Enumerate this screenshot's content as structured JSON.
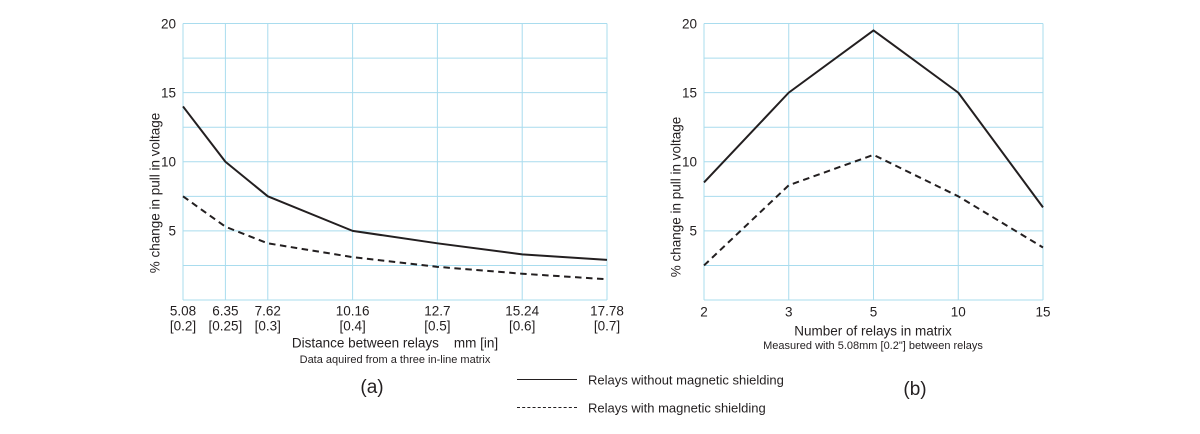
{
  "colors": {
    "grid": "#a9dcee",
    "series_line": "#231f20",
    "text": "#231f20",
    "background": "#ffffff"
  },
  "legend": {
    "position": "below-center",
    "items": [
      {
        "style": "solid",
        "label": "Relays without magnetic shielding"
      },
      {
        "style": "dashed",
        "label": "Relays with magnetic shielding"
      }
    ]
  },
  "chart_data": [
    {
      "id": "a",
      "type": "line",
      "caption": "(a)",
      "title": "",
      "xlabel": "Distance between relays    mm [in]",
      "x_note": "Data aquired from a three in-line matrix",
      "ylabel": "% change in pull in voltage",
      "ylim": [
        0,
        20
      ],
      "y_major_ticks": [
        "20",
        "15",
        "10",
        "5"
      ],
      "y_major_tick_values": [
        20,
        15,
        10,
        5
      ],
      "y_grid_step": 2.5,
      "grid": true,
      "x_axis_kind": "linear-mm",
      "x": [
        5.08,
        6.35,
        7.62,
        10.16,
        12.7,
        15.24,
        17.78
      ],
      "x_tick_labels_mm": [
        "5.08",
        "6.35",
        "7.62",
        "10.16",
        "12.7",
        "15.24",
        "17.78"
      ],
      "x_tick_labels_in": [
        "[0.2]",
        "[0.25]",
        "[0.3]",
        "[0.4]",
        "[0.5]",
        "[0.6]",
        "[0.7]"
      ],
      "series": [
        {
          "name": "Relays without magnetic shielding",
          "style": "solid",
          "values": [
            14,
            10,
            7.5,
            5,
            4.1,
            3.3,
            2.9
          ]
        },
        {
          "name": "Relays with magnetic shielding",
          "style": "dashed",
          "values": [
            7.5,
            5.3,
            4.1,
            3.1,
            2.4,
            1.9,
            1.5
          ]
        }
      ]
    },
    {
      "id": "b",
      "type": "line",
      "caption": "(b)",
      "title": "",
      "xlabel": "Number of relays in matrix",
      "x_note": "Measured with 5.08mm [0.2\"] between relays",
      "ylabel": "% change in pull in voltage",
      "ylim": [
        0,
        20
      ],
      "y_major_ticks": [
        "20",
        "15",
        "10",
        "5"
      ],
      "y_major_tick_values": [
        20,
        15,
        10,
        5
      ],
      "y_grid_step": 2.5,
      "grid": true,
      "x_axis_kind": "categorical",
      "x_tick_labels": [
        "2",
        "3",
        "5",
        "10",
        "15"
      ],
      "series": [
        {
          "name": "Relays without magnetic shielding",
          "style": "solid",
          "values": [
            8.5,
            15,
            19.5,
            15,
            6.7
          ]
        },
        {
          "name": "Relays with magnetic shielding",
          "style": "dashed",
          "values": [
            2.5,
            8.3,
            10.5,
            7.5,
            3.8
          ]
        }
      ]
    }
  ]
}
